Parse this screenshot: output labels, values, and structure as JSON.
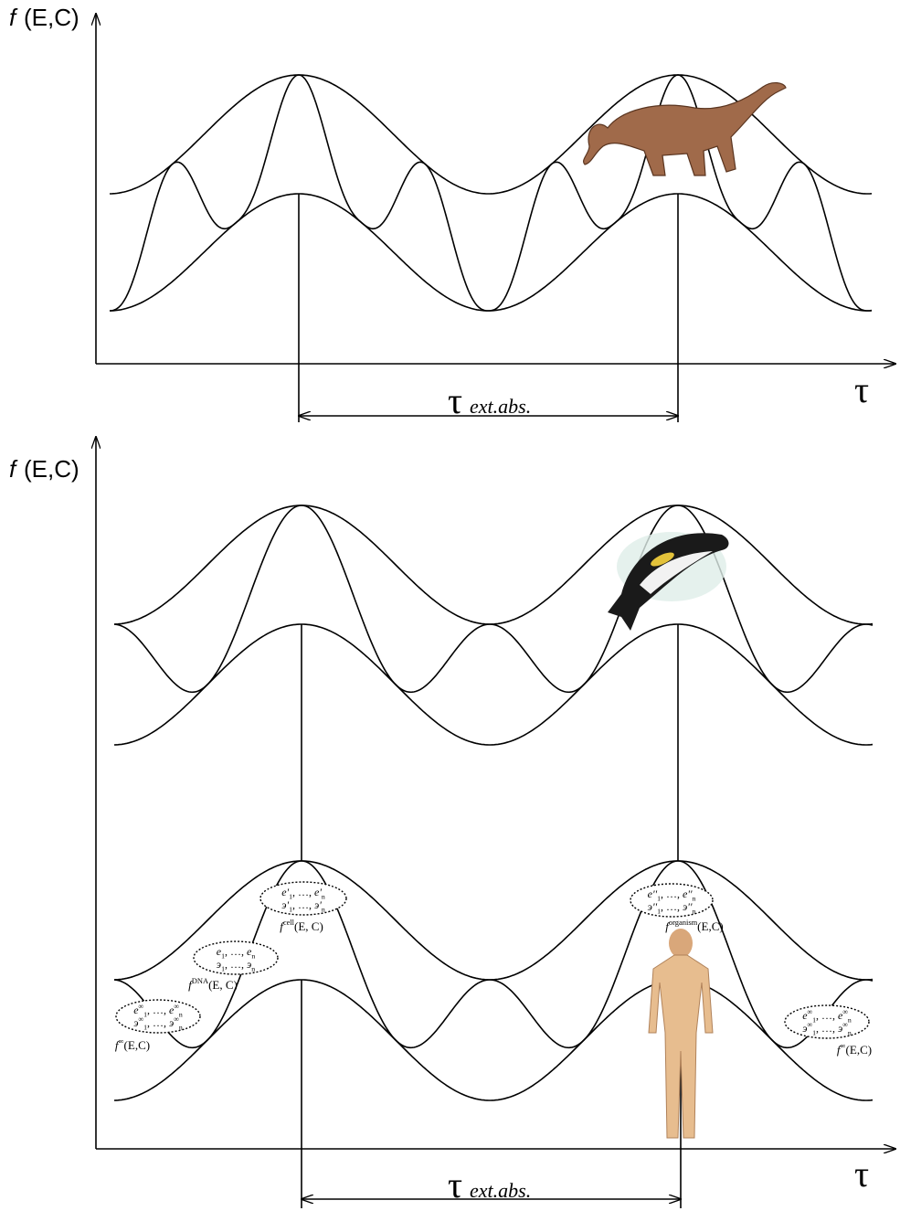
{
  "top_panel": {
    "y_axis_label": {
      "f": "f",
      "args": "(E,C)"
    },
    "x_axis_label": "τ",
    "period_label": {
      "symbol": "τ",
      "subscript": "ext.abs."
    }
  },
  "bottom_panel": {
    "y_axis_label": {
      "f": "f",
      "args": "(E,C)"
    },
    "x_axis_label": "τ",
    "period_label": {
      "symbol": "τ",
      "subscript": "ext.abs."
    },
    "list_separator": ", …, ",
    "annotations": [
      {
        "rows": [
          {
            "letter": "e'",
            "first": "1",
            "last": "n"
          },
          {
            "letter": "э'",
            "first": "1",
            "last": "n"
          }
        ],
        "function": {
          "f": "f",
          "sup": "cell",
          "args": "(E, C)"
        }
      },
      {
        "rows": [
          {
            "letter": "e",
            "first": "1",
            "last": "n"
          },
          {
            "letter": "э",
            "first": "1",
            "last": "n"
          }
        ],
        "function": {
          "f": "f",
          "sup": "DNA",
          "args": "(E, C)"
        }
      },
      {
        "rows": [
          {
            "letter": "e",
            "sup": "∞",
            "first": "1",
            "last": "n"
          },
          {
            "letter": "э",
            "sup": "∞",
            "first": "1",
            "last": "n"
          }
        ],
        "function": {
          "f": "f",
          "sup": "∞",
          "args": "(E,C)"
        }
      },
      {
        "rows": [
          {
            "letter": "e''",
            "first": "1",
            "last": "n"
          },
          {
            "letter": "э''",
            "first": "1",
            "last": "n"
          }
        ],
        "function": {
          "f": "f",
          "sup": "organism",
          "args": "(E,C)"
        }
      },
      {
        "rows": [
          {
            "letter": "e",
            "sup": "∞",
            "first": "1",
            "last": "n"
          },
          {
            "letter": "э",
            "sup": "∞",
            "first": "1",
            "last": "n"
          }
        ],
        "function": {
          "f": "f",
          "sup": "∞",
          "args": "(E,C)"
        }
      }
    ]
  }
}
